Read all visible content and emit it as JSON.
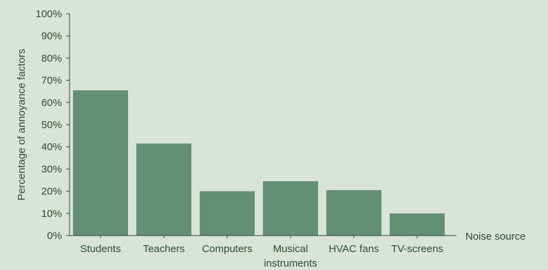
{
  "chart_data": {
    "type": "bar",
    "categories": [
      "Students",
      "Teachers",
      "Computers",
      "Musical instruments",
      "HVAC fans",
      "TV-screens"
    ],
    "category_lines": [
      [
        "Students"
      ],
      [
        "Teachers"
      ],
      [
        "Computers"
      ],
      [
        "Musical",
        "instruments"
      ],
      [
        "HVAC fans"
      ],
      [
        "TV-screens"
      ]
    ],
    "values": [
      65.5,
      41.5,
      20,
      24.5,
      20.5,
      10
    ],
    "ylabel": "Percentage of annoyance factors",
    "xlabel": "Noise source",
    "ylim": [
      0,
      100
    ],
    "yticks": [
      0,
      10,
      20,
      30,
      40,
      50,
      60,
      70,
      80,
      90,
      100
    ],
    "ytick_labels": [
      "0%",
      "10%",
      "20%",
      "30%",
      "40%",
      "50%",
      "60%",
      "70%",
      "80%",
      "90%",
      "100%"
    ],
    "grid": false,
    "legend": "none",
    "colors": {
      "bar": "#648f77",
      "axis": "#2d4a36",
      "background": "#d9e3da"
    }
  }
}
